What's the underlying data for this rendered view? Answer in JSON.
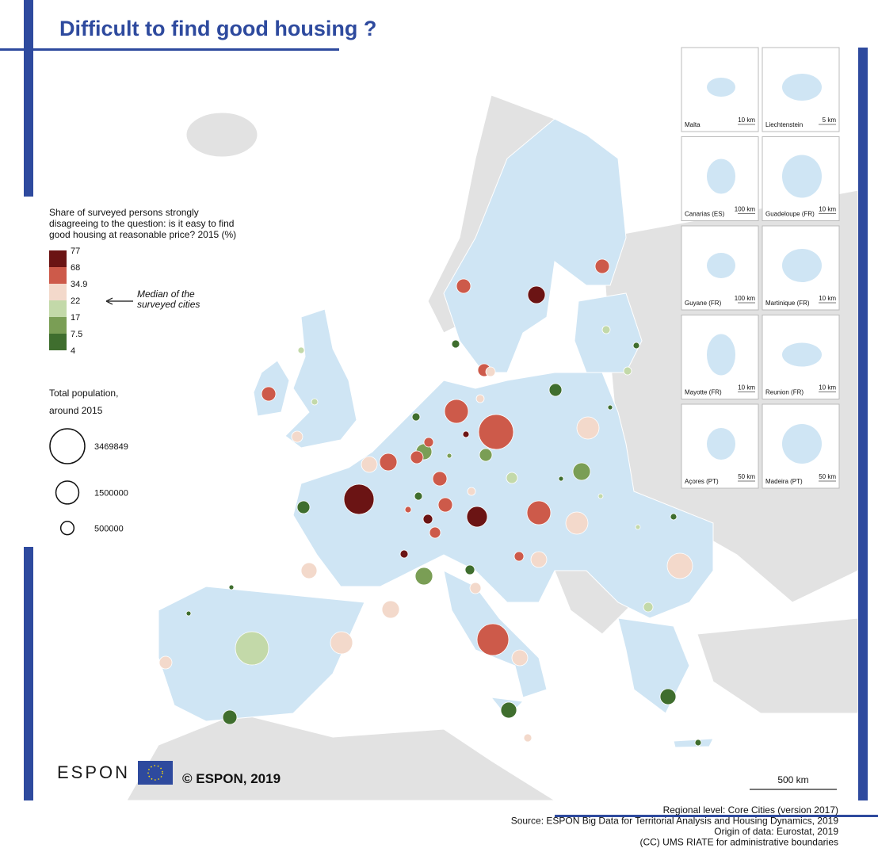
{
  "title": "Difficult to find good housing ?",
  "legend": {
    "title": [
      "Share of surveyed persons strongly",
      "disagreeing to the question: is it easy to find",
      "good housing at reasonable price? 2015 (%)"
    ],
    "breaks": [
      77,
      68,
      34.9,
      22,
      17,
      7.5,
      4
    ],
    "colors": [
      "#6b1414",
      "#cd5a4a",
      "#f3d9cb",
      "#c3d9a9",
      "#7a9e55",
      "#3f6e2e"
    ],
    "median_note": [
      "Median of the",
      "surveyed cities"
    ]
  },
  "size_legend": {
    "title": [
      "Total population,",
      "around 2015"
    ],
    "values": [
      3469849,
      1500000,
      500000
    ]
  },
  "insets": [
    {
      "name": "Malta",
      "scale": "10 km"
    },
    {
      "name": "Liechtenstein",
      "scale": "5 km"
    },
    {
      "name": "Canarias (ES)",
      "scale": "100 km"
    },
    {
      "name": "Guadeloupe (FR)",
      "scale": "10 km"
    },
    {
      "name": "Guyane (FR)",
      "scale": "100 km"
    },
    {
      "name": "Martinique (FR)",
      "scale": "10 km"
    },
    {
      "name": "Mayotte (FR)",
      "scale": "10 km"
    },
    {
      "name": "Reunion (FR)",
      "scale": "10 km"
    },
    {
      "name": "Açores (PT)",
      "scale": "50 km"
    },
    {
      "name": "Madeira (PT)",
      "scale": "50 km"
    }
  ],
  "logo": "ESPON",
  "copyright": "© ESPON, 2019",
  "scale_bar": "500 km",
  "sources": [
    "Regional level: Core Cities (version 2017)",
    "Source: ESPON Big Data for Territorial Analysis and Housing Dynamics, 2019",
    "Origin of data: Eurostat, 2019",
    "(CC) UMS RIATE for administrative boundaries"
  ]
}
